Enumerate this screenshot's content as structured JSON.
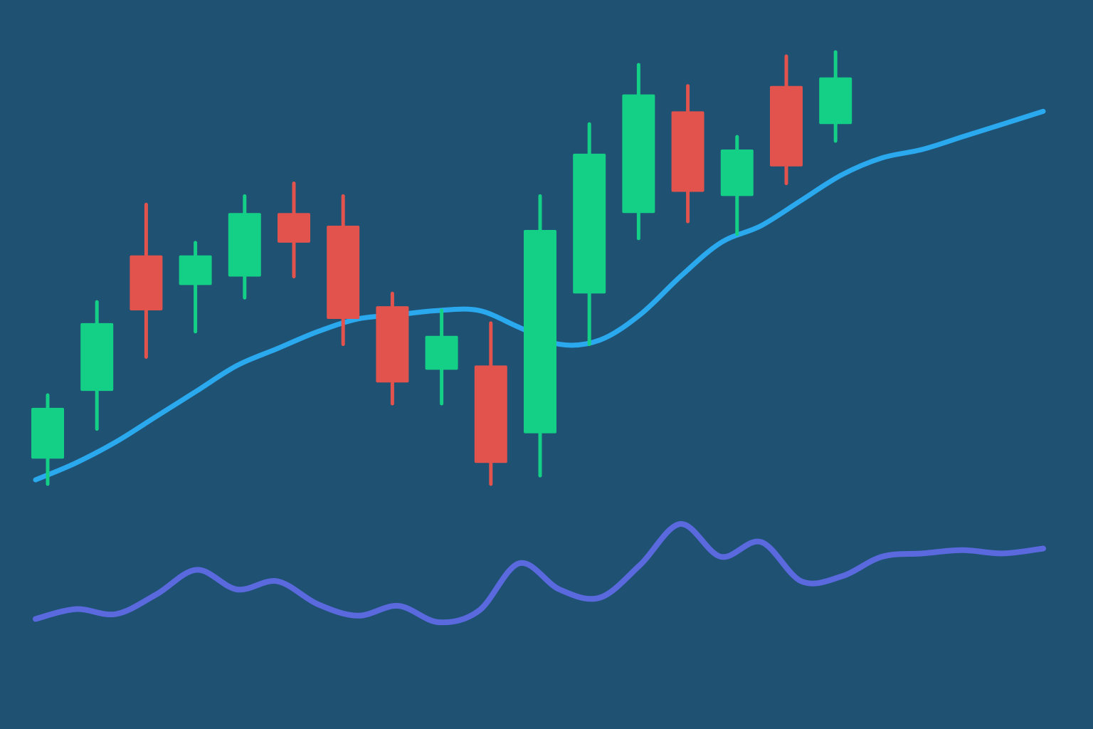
{
  "colors": {
    "background": "#1f5173",
    "bullish": "#14cf86",
    "bearish": "#e2534d",
    "moving_average": "#2aa9ee",
    "oscillator": "#5a6ade"
  },
  "chart_data": {
    "type": "candlestick",
    "title": "",
    "xlabel": "",
    "ylabel": "",
    "grid": false,
    "legend": "none",
    "ylim": [
      0,
      100
    ],
    "candles": [
      {
        "open": 6,
        "high": 21,
        "low": 0,
        "close": 18,
        "direction": "up"
      },
      {
        "open": 22,
        "high": 43,
        "low": 13,
        "close": 38,
        "direction": "up"
      },
      {
        "open": 54,
        "high": 66,
        "low": 30,
        "close": 41,
        "direction": "down"
      },
      {
        "open": 47,
        "high": 57,
        "low": 36,
        "close": 54,
        "direction": "up"
      },
      {
        "open": 49,
        "high": 68,
        "low": 44,
        "close": 64,
        "direction": "up"
      },
      {
        "open": 64,
        "high": 71,
        "low": 49,
        "close": 57,
        "direction": "down"
      },
      {
        "open": 61,
        "high": 68,
        "low": 33,
        "close": 39,
        "direction": "down"
      },
      {
        "open": 42,
        "high": 45,
        "low": 19,
        "close": 24,
        "direction": "down"
      },
      {
        "open": 27,
        "high": 41,
        "low": 19,
        "close": 35,
        "direction": "up"
      },
      {
        "open": 28,
        "high": 38,
        "low": 0,
        "close": 5,
        "direction": "down"
      },
      {
        "open": 12,
        "high": 68,
        "low": 2,
        "close": 60,
        "direction": "up"
      },
      {
        "open": 45,
        "high": 85,
        "low": 33,
        "close": 78,
        "direction": "up"
      },
      {
        "open": 64,
        "high": 99,
        "low": 58,
        "close": 92,
        "direction": "up"
      },
      {
        "open": 88,
        "high": 94,
        "low": 62,
        "close": 69,
        "direction": "down"
      },
      {
        "open": 68,
        "high": 82,
        "low": 59,
        "close": 79,
        "direction": "up"
      },
      {
        "open": 94,
        "high": 101,
        "low": 71,
        "close": 75,
        "direction": "down"
      },
      {
        "open": 85,
        "high": 102,
        "low": 81,
        "close": 96,
        "direction": "up"
      }
    ],
    "moving_average": [
      1,
      5,
      10,
      16,
      22,
      28,
      32,
      36,
      39,
      40,
      41,
      41,
      37,
      33,
      34,
      40,
      49,
      57,
      61,
      67,
      73,
      77,
      79,
      82,
      85,
      88
    ],
    "oscillator": [
      22,
      28,
      25,
      37,
      52,
      40,
      45,
      31,
      24,
      30,
      20,
      27,
      56,
      40,
      35,
      55,
      80,
      60,
      69,
      45,
      48,
      60,
      62,
      64,
      62,
      65
    ]
  }
}
